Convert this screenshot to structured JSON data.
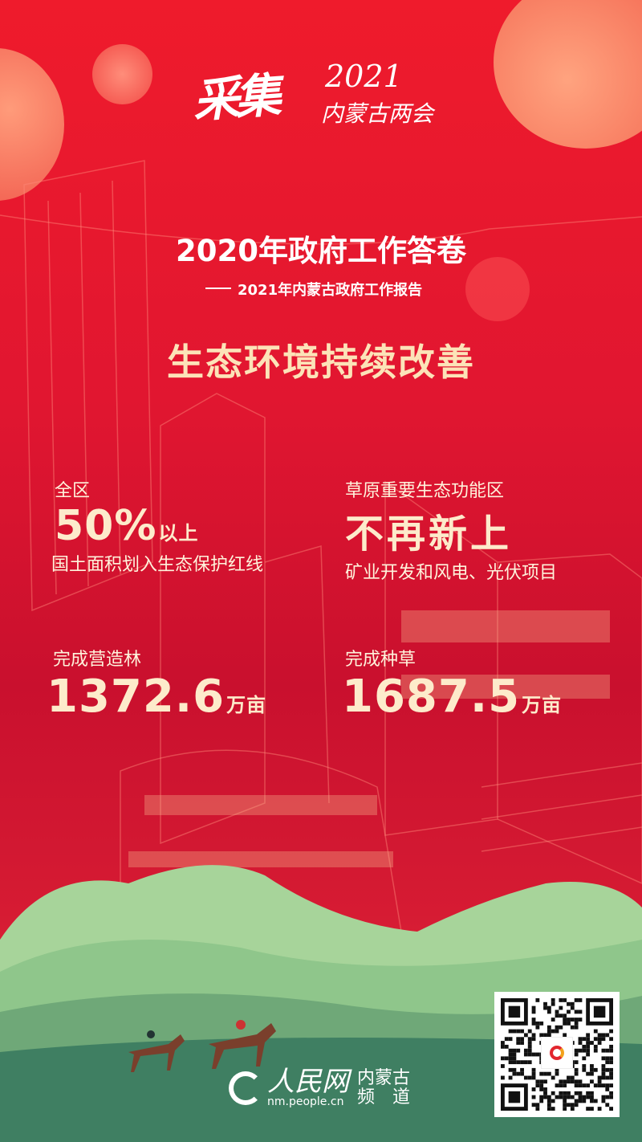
{
  "header": {
    "logo_text": "采集2021内蒙古两会",
    "title": "2020年政府工作答卷",
    "subtitle": "2021年内蒙古政府工作报告",
    "theme": "生态环境持续改善"
  },
  "stats": [
    {
      "label": "全区",
      "value": "50%",
      "unit": "以上",
      "desc": "国土面积划入生态保护红线"
    },
    {
      "label": "草原重要生态功能区",
      "value": "不再新上",
      "unit": "",
      "desc": "矿业开发和风电、光伏项目"
    },
    {
      "label": "完成营造林",
      "value": "1372.6",
      "unit": "万亩",
      "desc": ""
    },
    {
      "label": "完成种草",
      "value": "1687.5",
      "unit": "万亩",
      "desc": ""
    }
  ],
  "footer": {
    "brand": "人民网",
    "channel_line1": "内蒙古",
    "channel_line2": "频　道",
    "url": "nm.people.cn"
  },
  "colors": {
    "background": "#e11630",
    "title_gold": "#fce3b8",
    "hill_green": "#5f9e6e"
  }
}
